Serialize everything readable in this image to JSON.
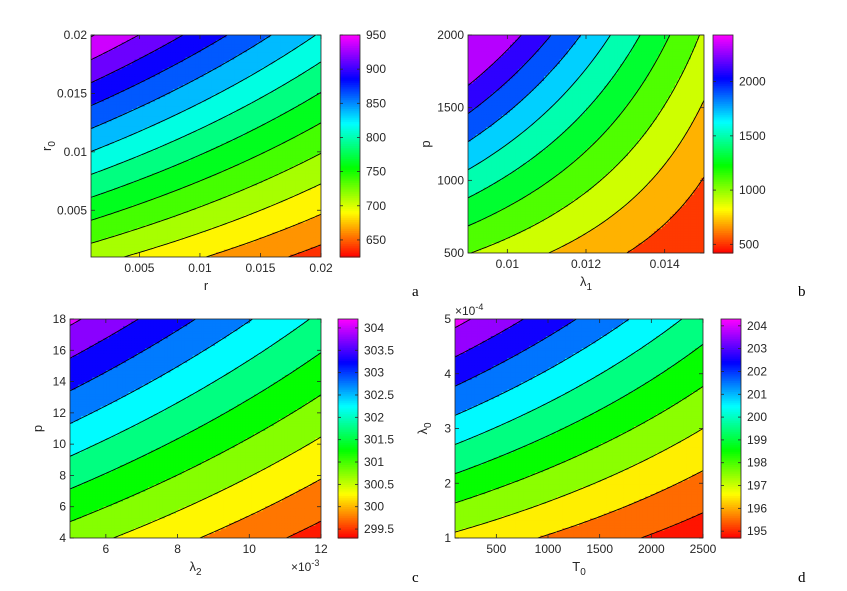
{
  "chart_data": [
    {
      "type": "contour",
      "panel_label": "a",
      "xlabel": "r",
      "ylabel": "r0",
      "xlabel_main": "r",
      "ylabel_main": "r",
      "ylabel_sub": "0",
      "xlim": [
        0.001,
        0.02
      ],
      "ylim": [
        0.001,
        0.02
      ],
      "xticks": [
        0.005,
        0.01,
        0.015,
        0.02
      ],
      "xtick_labels": [
        "0.005",
        "0.01",
        "0.015",
        "0.02"
      ],
      "yticks": [
        0.005,
        0.01,
        0.015,
        0.02
      ],
      "ytick_labels": [
        "0.005",
        "0.01",
        "0.015",
        "0.02"
      ],
      "contour_levels": [
        650,
        675,
        700,
        725,
        750,
        775,
        800,
        825,
        850,
        875,
        900,
        925,
        950
      ],
      "colorbar_ticks": [
        650,
        700,
        750,
        800,
        850,
        900,
        950
      ],
      "colorbar_tick_labels": [
        "650",
        "700",
        "750",
        "800",
        "850",
        "900",
        "950"
      ],
      "colorbar_range": [
        625,
        950
      ],
      "field_corners": {
        "bottom_left": 710,
        "bottom_right": 640,
        "top_left": 952,
        "top_right": 822
      }
    },
    {
      "type": "contour",
      "panel_label": "b",
      "xlabel": "λ1",
      "ylabel": "p",
      "xlabel_main": "λ",
      "xlabel_sub": "1",
      "ylabel_main": "p",
      "xlim": [
        0.009,
        0.015
      ],
      "ylim": [
        500,
        2000
      ],
      "xticks": [
        0.01,
        0.012,
        0.014
      ],
      "xtick_labels": [
        "0.01",
        "0.012",
        "0.014"
      ],
      "yticks": [
        500,
        1000,
        1500,
        2000
      ],
      "ytick_labels": [
        "500",
        "1000",
        "1500",
        "2000"
      ],
      "contour_levels": [
        600,
        800,
        1000,
        1200,
        1400,
        1600,
        1800,
        2000,
        2200
      ],
      "colorbar_ticks": [
        500,
        1000,
        1500,
        2000
      ],
      "colorbar_tick_labels": [
        "500",
        "1000",
        "1500",
        "2000"
      ],
      "colorbar_range": [
        420,
        2430
      ],
      "field_corners": {
        "bottom_left": 1007,
        "bottom_right": 402,
        "top_left": 2560,
        "top_right": 970
      }
    },
    {
      "type": "contour",
      "panel_label": "c",
      "xlabel": "λ2",
      "ylabel": "p",
      "xlabel_main": "λ",
      "xlabel_sub": "2",
      "ylabel_main": "p",
      "x_multiplier_main": "×10",
      "x_multiplier_exp": "-3",
      "xlim": [
        5,
        12
      ],
      "ylim": [
        4,
        18
      ],
      "xticks": [
        6,
        8,
        10,
        12
      ],
      "xtick_labels": [
        "6",
        "8",
        "10",
        "12"
      ],
      "yticks": [
        4,
        6,
        8,
        10,
        12,
        14,
        16,
        18
      ],
      "ytick_labels": [
        "4",
        "6",
        "8",
        "10",
        "12",
        "14",
        "16",
        "18"
      ],
      "contour_levels": [
        299.5,
        300,
        300.5,
        301,
        301.5,
        302,
        302.5,
        303,
        303.5,
        304
      ],
      "colorbar_ticks": [
        299.5,
        300,
        300.5,
        301,
        301.5,
        302,
        302.5,
        303,
        303.5,
        304
      ],
      "colorbar_tick_labels": [
        "299.5",
        "300",
        "300.5",
        "301",
        "301.5",
        "302",
        "302.5",
        "303",
        "303.5",
        "304"
      ],
      "colorbar_range": [
        299.3,
        304.2
      ],
      "field_corners": {
        "bottom_left": 300.75,
        "bottom_right": 299.3,
        "top_left": 304.1,
        "top_right": 301.9
      }
    },
    {
      "type": "contour",
      "panel_label": "d",
      "xlabel": "T0",
      "ylabel": "λ0",
      "xlabel_main": "T",
      "xlabel_sub": "0",
      "ylabel_main": "λ",
      "ylabel_sub": "0",
      "y_multiplier_main": "×10",
      "y_multiplier_exp": "-4",
      "xlim": [
        100,
        2500
      ],
      "ylim": [
        1,
        5
      ],
      "xticks": [
        500,
        1000,
        1500,
        2000,
        2500
      ],
      "xtick_labels": [
        "500",
        "1000",
        "1500",
        "2000",
        "2500"
      ],
      "yticks": [
        1,
        2,
        3,
        4,
        5
      ],
      "ytick_labels": [
        "1",
        "2",
        "3",
        "4",
        "5"
      ],
      "contour_levels": [
        195,
        196,
        197,
        198,
        199,
        200,
        201,
        202,
        203,
        204
      ],
      "colorbar_ticks": [
        195,
        196,
        197,
        198,
        199,
        200,
        201,
        202,
        203,
        204
      ],
      "colorbar_tick_labels": [
        "195",
        "196",
        "197",
        "198",
        "199",
        "200",
        "201",
        "202",
        "203",
        "204"
      ],
      "colorbar_range": [
        194.7,
        204.3
      ],
      "field_corners": {
        "bottom_left": 196.8,
        "bottom_right": 194.4,
        "top_left": 204.3,
        "top_right": 199.6
      }
    }
  ],
  "colors": {
    "colormap": [
      "#ff0000",
      "#ff8000",
      "#ffff00",
      "#80ff00",
      "#00ff00",
      "#00ff80",
      "#00ffff",
      "#0080ff",
      "#0000ff",
      "#8000ff",
      "#ff00ff"
    ],
    "contour_line": "#000000",
    "axis": "#262626"
  }
}
